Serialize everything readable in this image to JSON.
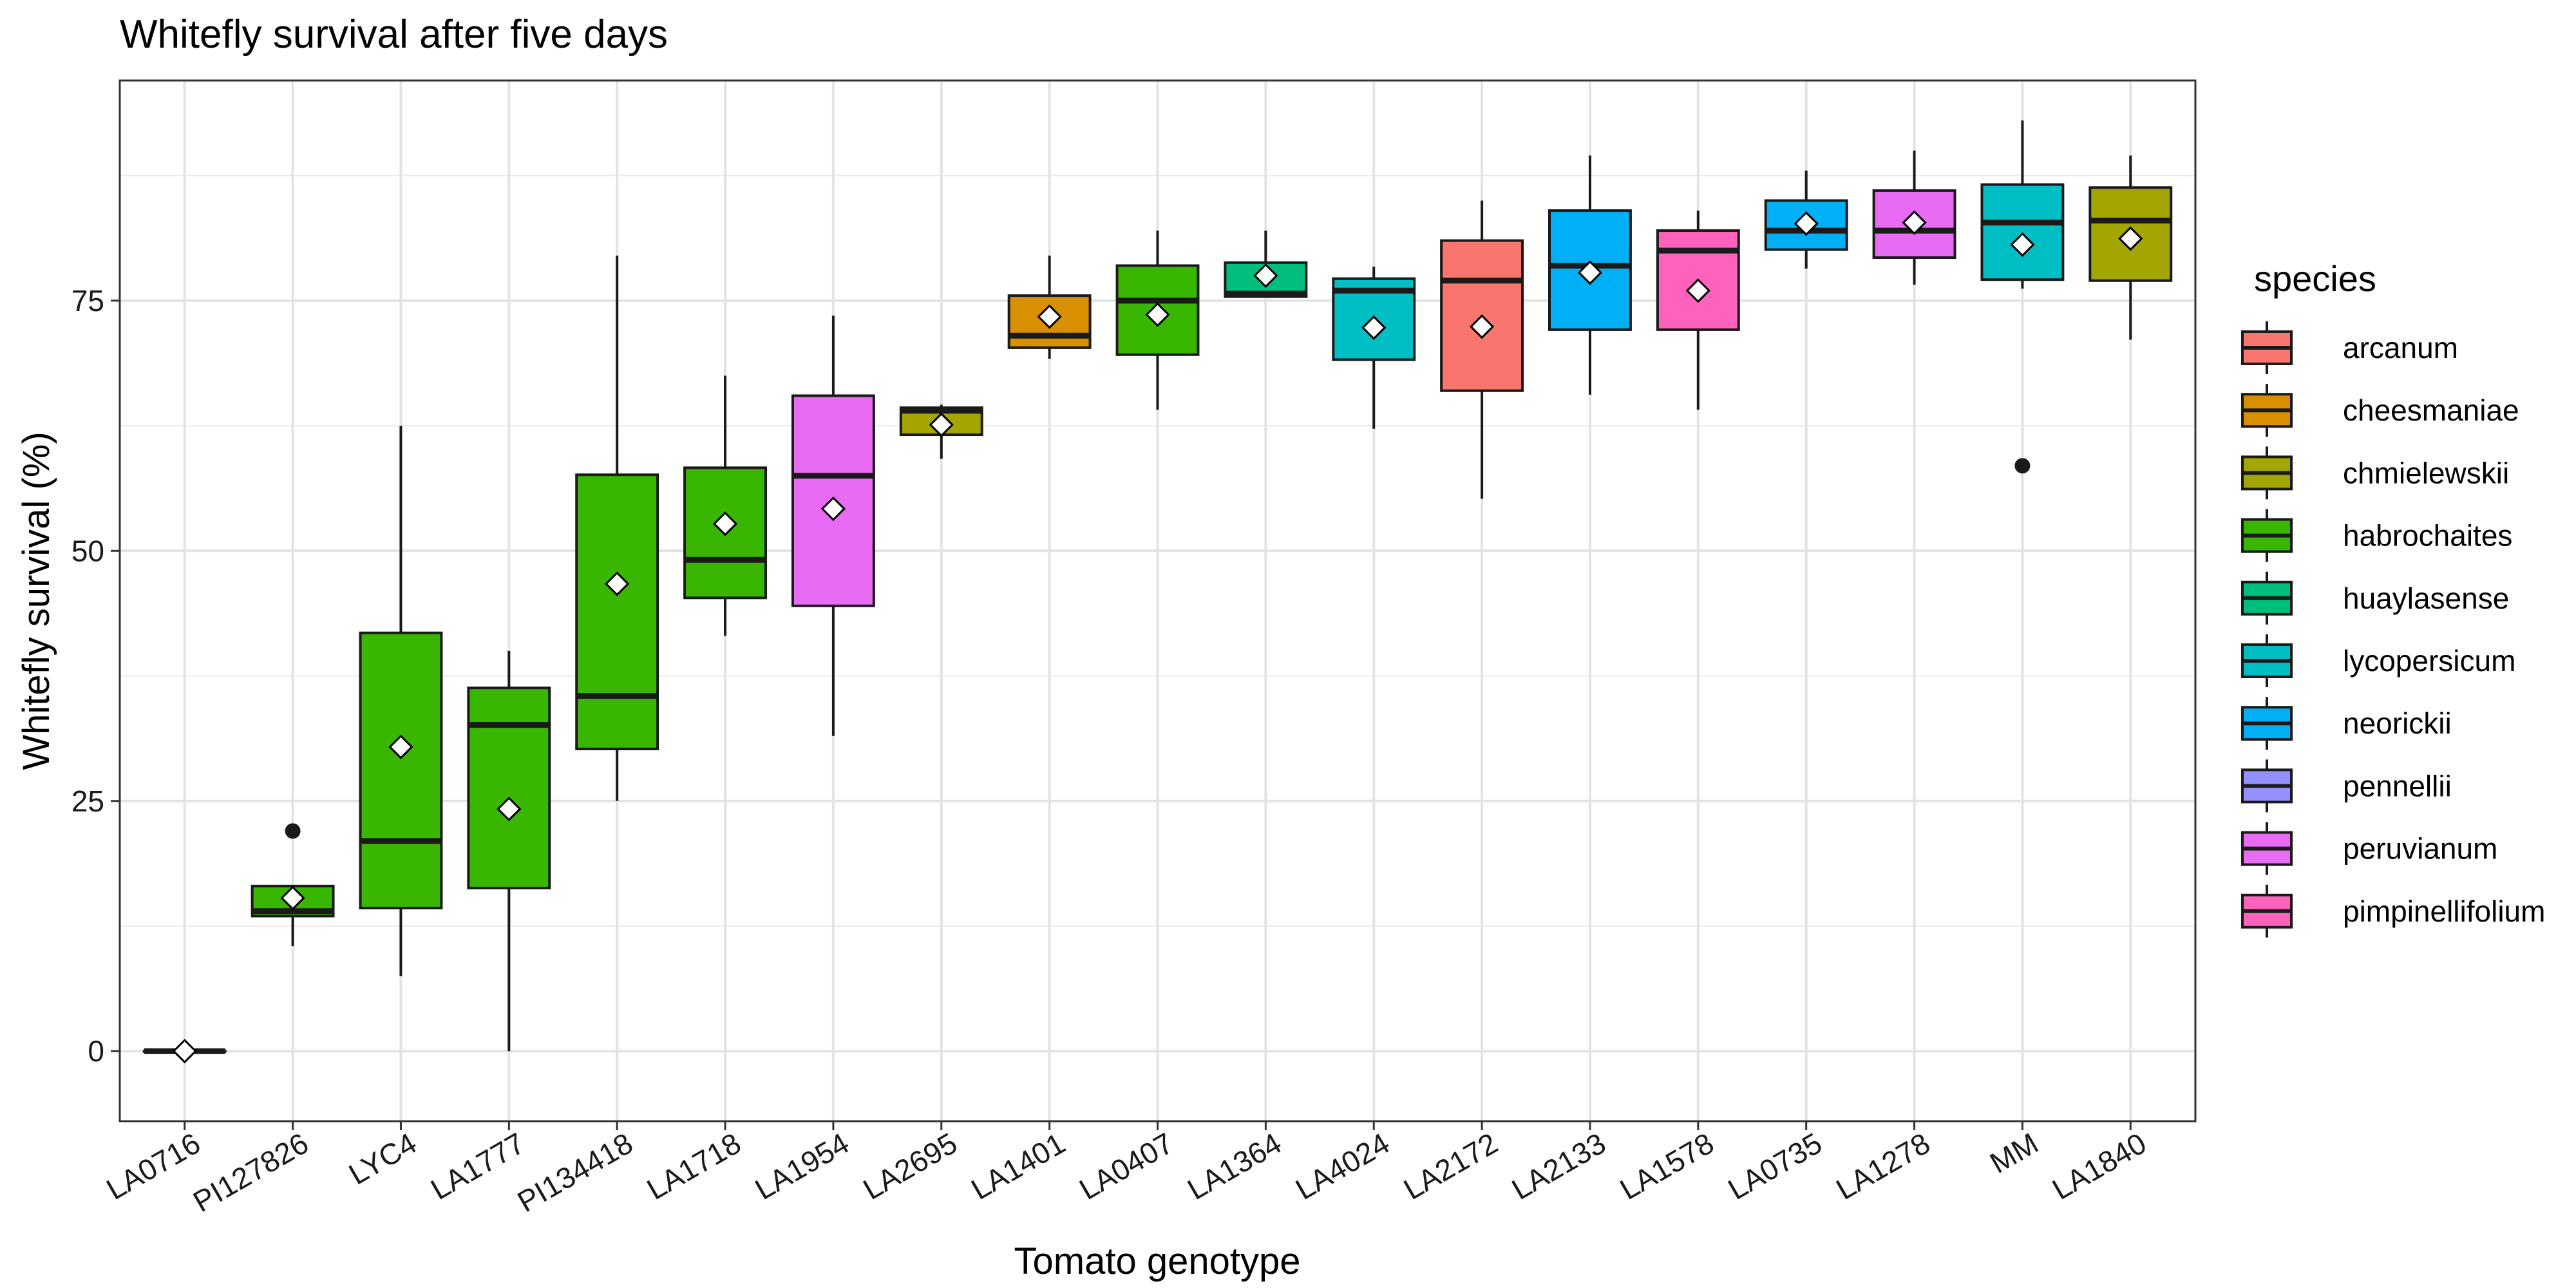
{
  "chart_data": {
    "type": "box",
    "title": "Whitefly survival after five days",
    "xlabel": "Tomato genotype",
    "ylabel": "Whitefly survival (%)",
    "ylim": [
      -7,
      97
    ],
    "yticks": [
      0,
      25,
      50,
      75
    ],
    "grid": true,
    "legend": {
      "title": "species",
      "placement": "right",
      "entries": [
        {
          "name": "arcanum",
          "color": "#F8766D"
        },
        {
          "name": "cheesmaniae",
          "color": "#D89000"
        },
        {
          "name": "chmielewskii",
          "color": "#A3A500"
        },
        {
          "name": "habrochaites",
          "color": "#39B600"
        },
        {
          "name": "huaylasense",
          "color": "#00BF7D"
        },
        {
          "name": "lycopersicum",
          "color": "#00BFC4"
        },
        {
          "name": "neorickii",
          "color": "#00B0F6"
        },
        {
          "name": "pennellii",
          "color": "#9590FF"
        },
        {
          "name": "peruvianum",
          "color": "#E76BF3"
        },
        {
          "name": "pimpinellifolium",
          "color": "#FF62BC"
        }
      ]
    },
    "categories": [
      "LA0716",
      "PI127826",
      "LYC4",
      "LA1777",
      "PI134418",
      "LA1718",
      "LA1954",
      "LA2695",
      "LA1401",
      "LA0407",
      "LA1364",
      "LA4024",
      "LA2172",
      "LA2133",
      "LA1578",
      "LA0735",
      "LA1278",
      "MM",
      "LA1840"
    ],
    "boxes": [
      {
        "genotype": "LA0716",
        "species": "pennellii",
        "min": 0,
        "q1": 0,
        "median": 0,
        "q3": 0,
        "max": 0,
        "mean": 0,
        "outliers": []
      },
      {
        "genotype": "PI127826",
        "species": "habrochaites",
        "min": 10.5,
        "q1": 13.5,
        "median": 14,
        "q3": 16.5,
        "max": 16.5,
        "mean": 15.3,
        "outliers": [
          22
        ]
      },
      {
        "genotype": "LYC4",
        "species": "habrochaites",
        "min": 7.5,
        "q1": 14.3,
        "median": 21,
        "q3": 41.8,
        "max": 62.5,
        "mean": 30.4,
        "outliers": []
      },
      {
        "genotype": "LA1777",
        "species": "habrochaites",
        "min": 0,
        "q1": 16.3,
        "median": 32.6,
        "q3": 36.3,
        "max": 40,
        "mean": 24.2,
        "outliers": []
      },
      {
        "genotype": "PI134418",
        "species": "habrochaites",
        "min": 25,
        "q1": 30.2,
        "median": 35.5,
        "q3": 57.6,
        "max": 79.5,
        "mean": 46.7,
        "outliers": []
      },
      {
        "genotype": "LA1718",
        "species": "habrochaites",
        "min": 41.5,
        "q1": 45.3,
        "median": 49.1,
        "q3": 58.3,
        "max": 67.5,
        "mean": 52.7,
        "outliers": []
      },
      {
        "genotype": "LA1954",
        "species": "peruvianum",
        "min": 31.5,
        "q1": 44.5,
        "median": 57.5,
        "q3": 65.5,
        "max": 73.5,
        "mean": 54.2,
        "outliers": []
      },
      {
        "genotype": "LA2695",
        "species": "chmielewskii",
        "min": 59.2,
        "q1": 61.6,
        "median": 64,
        "q3": 64.3,
        "max": 64.6,
        "mean": 62.6,
        "outliers": []
      },
      {
        "genotype": "LA1401",
        "species": "cheesmaniae",
        "min": 69.2,
        "q1": 70.3,
        "median": 71.5,
        "q3": 75.5,
        "max": 79.5,
        "mean": 73.4,
        "outliers": []
      },
      {
        "genotype": "LA0407",
        "species": "habrochaites",
        "min": 64.1,
        "q1": 69.6,
        "median": 75,
        "q3": 78.5,
        "max": 82,
        "mean": 73.6,
        "outliers": []
      },
      {
        "genotype": "LA1364",
        "species": "huaylasense",
        "min": 75.4,
        "q1": 75.4,
        "median": 75.7,
        "q3": 78.8,
        "max": 82,
        "mean": 77.5,
        "outliers": []
      },
      {
        "genotype": "LA4024",
        "species": "lycopersicum",
        "min": 62.2,
        "q1": 69.1,
        "median": 76,
        "q3": 77.2,
        "max": 78.4,
        "mean": 72.3,
        "outliers": []
      },
      {
        "genotype": "LA2172",
        "species": "arcanum",
        "min": 55.2,
        "q1": 66,
        "median": 77,
        "q3": 81,
        "max": 85,
        "mean": 72.4,
        "outliers": []
      },
      {
        "genotype": "LA2133",
        "species": "neorickii",
        "min": 65.6,
        "q1": 72.1,
        "median": 78.5,
        "q3": 84,
        "max": 89.5,
        "mean": 77.8,
        "outliers": []
      },
      {
        "genotype": "LA1578",
        "species": "pimpinellifolium",
        "min": 64.1,
        "q1": 72.1,
        "median": 80,
        "q3": 82,
        "max": 84,
        "mean": 76,
        "outliers": []
      },
      {
        "genotype": "LA0735",
        "species": "neorickii",
        "min": 78.2,
        "q1": 80.1,
        "median": 82,
        "q3": 85,
        "max": 88,
        "mean": 82.7,
        "outliers": []
      },
      {
        "genotype": "LA1278",
        "species": "peruvianum",
        "min": 76.6,
        "q1": 79.3,
        "median": 82,
        "q3": 86,
        "max": 90,
        "mean": 82.8,
        "outliers": []
      },
      {
        "genotype": "MM",
        "species": "lycopersicum",
        "min": 76.2,
        "q1": 77.1,
        "median": 82.8,
        "q3": 86.6,
        "max": 93,
        "mean": 80.6,
        "outliers": [
          58.5
        ]
      },
      {
        "genotype": "LA1840",
        "species": "chmielewskii",
        "min": 71.1,
        "q1": 77,
        "median": 83,
        "q3": 86.3,
        "max": 89.5,
        "mean": 81.2,
        "outliers": []
      }
    ]
  }
}
